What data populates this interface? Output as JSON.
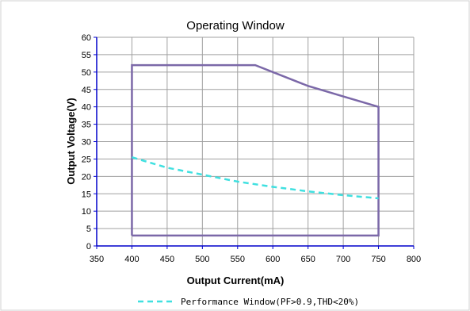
{
  "chart_data": {
    "type": "line",
    "title": "Operating Window",
    "xlabel": "Output Current(mA)",
    "ylabel": "Output Voltage(V)",
    "xlim": [
      350,
      800
    ],
    "ylim": [
      0,
      60
    ],
    "x_ticks": [
      350,
      400,
      450,
      500,
      550,
      600,
      650,
      700,
      750,
      800
    ],
    "y_ticks": [
      0,
      5,
      10,
      15,
      20,
      25,
      30,
      35,
      40,
      45,
      50,
      55,
      60
    ],
    "grid": true,
    "legend_position": "bottom",
    "series": [
      {
        "name": "",
        "style": "solid",
        "color": "#7b68a8",
        "points": [
          [
            400,
            3
          ],
          [
            400,
            52
          ],
          [
            575,
            52
          ],
          [
            650,
            46
          ],
          [
            700,
            43
          ],
          [
            750,
            40
          ],
          [
            750,
            3
          ],
          [
            400,
            3
          ]
        ]
      },
      {
        "name": "Performance Window(PF>0.9,THD<20%)",
        "style": "dashed",
        "color": "#40e0e0",
        "points": [
          [
            400,
            25.5
          ],
          [
            450,
            22.5
          ],
          [
            500,
            20.5
          ],
          [
            550,
            18.5
          ],
          [
            600,
            17
          ],
          [
            650,
            15.7
          ],
          [
            700,
            14.6
          ],
          [
            750,
            13.7
          ]
        ]
      }
    ]
  },
  "colors": {
    "axis": "#0000cc",
    "grid": "#a0a0a0",
    "frame": "#d0d0d0"
  }
}
